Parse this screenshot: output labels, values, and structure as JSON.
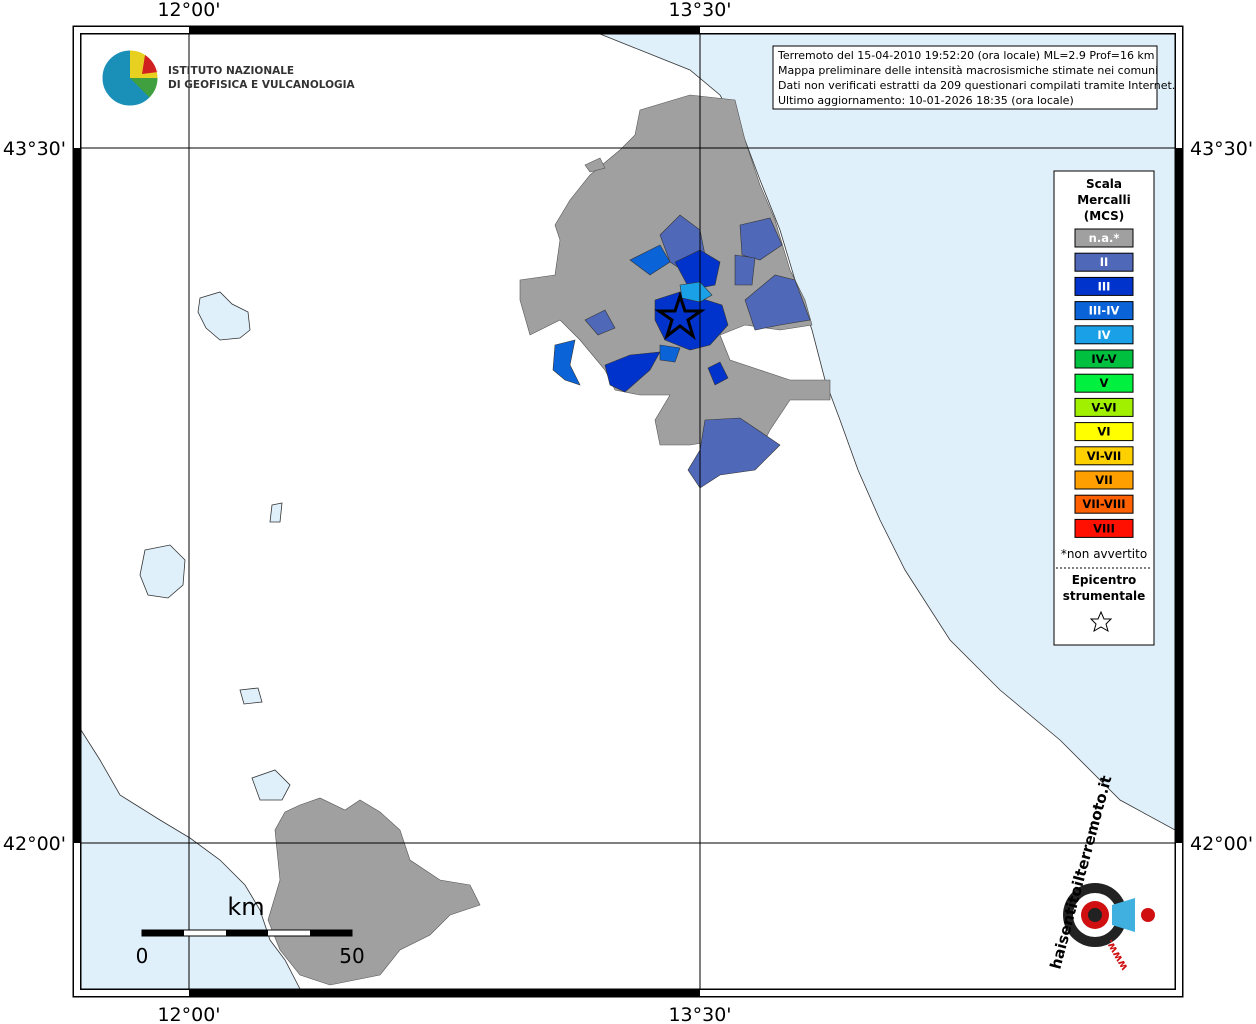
{
  "map": {
    "top_ticks": [
      "12°00'",
      "13°30'"
    ],
    "bottom_ticks": [
      "12°00'",
      "13°30'"
    ],
    "left_ticks": [
      "43°30'",
      "42°00'"
    ],
    "right_ticks": [
      "43°30'",
      "42°00'"
    ]
  },
  "logo": {
    "line1": "ISTITUTO NAZIONALE",
    "line2": "DI GEOFISICA E VULCANOLOGIA"
  },
  "info": [
    "Terremoto del 15-04-2010 19:52:20 (ora locale) ML=2.9 Prof=16 km",
    "Mappa preliminare delle intensità macrosismiche stimate nei comuni",
    "Dati non verificati estratti da 209 questionari compilati tramite Internet.",
    "Ultimo aggiornamento: 10-01-2026 18:35 (ora locale)"
  ],
  "legend": {
    "title": [
      "Scala",
      "Mercalli",
      "(MCS)"
    ],
    "items": [
      {
        "label": "n.a.*",
        "color": "#a0a0a0"
      },
      {
        "label": "II",
        "color": "#5068b8"
      },
      {
        "label": "III",
        "color": "#0033cc"
      },
      {
        "label": "III-IV",
        "color": "#0a64d8"
      },
      {
        "label": "IV",
        "color": "#1aa0e6"
      },
      {
        "label": "IV-V",
        "color": "#00c040"
      },
      {
        "label": "V",
        "color": "#00f040"
      },
      {
        "label": "V-VI",
        "color": "#a0f000"
      },
      {
        "label": "VI",
        "color": "#ffff00"
      },
      {
        "label": "VI-VII",
        "color": "#ffd000"
      },
      {
        "label": "VII",
        "color": "#ffa000"
      },
      {
        "label": "VII-VIII",
        "color": "#ff6000"
      },
      {
        "label": "VIII",
        "color": "#ff1000"
      }
    ],
    "note": "*non avvertito",
    "epicentre": [
      "Epicentro",
      "strumentale"
    ]
  },
  "scale_bar": {
    "unit": "km",
    "start": "0",
    "end": "50"
  },
  "site": {
    "name": "haisentitoilterremoto.it",
    "prefix": "www."
  }
}
